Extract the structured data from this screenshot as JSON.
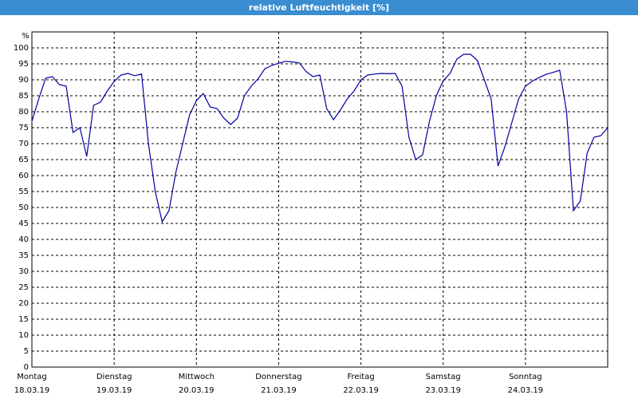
{
  "chart_data": {
    "type": "line",
    "title": "relative Luftfeuchtigkeit [%]",
    "y_label": "%",
    "x": [
      0,
      2,
      4,
      6,
      8,
      10,
      12,
      14,
      16,
      18,
      20,
      22,
      24,
      26,
      28,
      30,
      32,
      34,
      36,
      38,
      40,
      42,
      44,
      46,
      48,
      50,
      52,
      54,
      56,
      58,
      60,
      62,
      64,
      66,
      68,
      70,
      72,
      74,
      76,
      78,
      80,
      82,
      84,
      86,
      88,
      90,
      92,
      94,
      96,
      98,
      100,
      102,
      104,
      106,
      108,
      110,
      112,
      114,
      116,
      118,
      120,
      122,
      124,
      126,
      128,
      130,
      132,
      134,
      136,
      138,
      140,
      142,
      144,
      146,
      148,
      150,
      152,
      154,
      156,
      158,
      160,
      162,
      164,
      166,
      168
    ],
    "series": [
      {
        "name": "relative Luftfeuchtigkeit",
        "color": "#0000a0",
        "values": [
          77,
          84,
          90.5,
          91,
          88.5,
          88,
          73.5,
          75,
          66,
          82,
          83,
          86.5,
          89.5,
          91.5,
          92,
          91.3,
          91.8,
          70,
          55,
          45.5,
          49,
          61,
          70,
          79,
          83.5,
          85.7,
          81.5,
          81,
          78,
          76,
          78,
          85,
          88,
          90.3,
          93.5,
          94.5,
          95.2,
          95.8,
          95.6,
          95.3,
          92.6,
          91,
          91.5,
          81,
          77.5,
          80.5,
          84,
          86.5,
          90,
          91.5,
          91.8,
          92,
          91.9,
          92,
          88,
          72,
          65,
          66.5,
          77,
          85,
          89.7,
          92,
          96.5,
          98,
          98,
          96,
          90,
          84,
          63,
          69,
          76.5,
          84,
          88,
          89.6,
          90.7,
          91.7,
          92.3,
          93,
          80,
          49,
          52,
          67,
          72,
          72.5,
          75
        ]
      }
    ],
    "xlim": [
      0,
      168
    ],
    "xticks": [
      {
        "value": 0,
        "label": "Montag",
        "date": "18.03.19"
      },
      {
        "value": 24,
        "label": "Dienstag",
        "date": "19.03.19"
      },
      {
        "value": 48,
        "label": "Mittwoch",
        "date": "20.03.19"
      },
      {
        "value": 72,
        "label": "Donnerstag",
        "date": "21.03.19"
      },
      {
        "value": 96,
        "label": "Freitag",
        "date": "22.03.19"
      },
      {
        "value": 120,
        "label": "Samstag",
        "date": "23.03.19"
      },
      {
        "value": 144,
        "label": "Sonntag",
        "date": "24.03.19"
      }
    ],
    "ylim": [
      0,
      105
    ],
    "yticks": [
      0,
      5,
      10,
      15,
      20,
      25,
      30,
      35,
      40,
      45,
      50,
      55,
      60,
      65,
      70,
      75,
      80,
      85,
      90,
      95,
      100
    ],
    "grid": true
  }
}
